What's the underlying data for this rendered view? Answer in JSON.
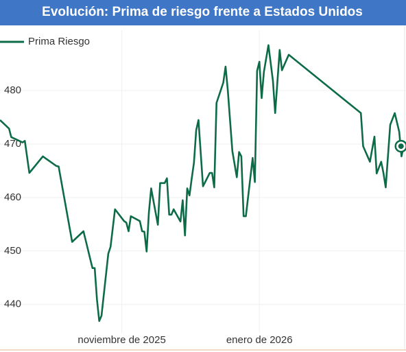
{
  "chart_data": {
    "type": "line",
    "title": "Evolución: Prima de riesgo frente a Estados Unidos",
    "x": [
      0,
      4,
      5,
      10,
      11,
      13,
      19,
      25,
      26,
      32,
      37,
      41,
      42,
      43,
      44,
      45,
      48,
      49,
      51,
      55,
      56,
      57,
      58,
      62,
      63,
      64,
      65,
      66,
      67,
      70,
      71,
      73,
      74,
      75,
      76,
      77,
      80,
      81,
      82,
      83,
      84,
      85,
      86,
      87,
      88,
      90,
      93,
      94,
      95,
      96,
      99,
      100,
      101,
      103,
      105,
      106,
      107,
      108,
      109,
      112,
      113,
      114,
      115,
      116,
      117,
      119,
      121,
      122,
      124,
      125,
      128,
      160,
      161,
      164,
      166,
      167,
      169,
      170,
      171,
      173,
      175,
      177,
      178,
      179
    ],
    "series": [
      {
        "name": "Prima Riesgo",
        "color": "#0d6b47",
        "values": [
          474.5,
          472.9,
          471.3,
          470.3,
          470.6,
          464.6,
          467.7,
          465.9,
          465.8,
          451.7,
          453.7,
          446.8,
          446.8,
          440.9,
          436.9,
          437.9,
          449.5,
          450.8,
          457.8,
          455.6,
          455.3,
          453.7,
          456.5,
          455.6,
          453.7,
          453.6,
          449.9,
          457.2,
          461.7,
          454.9,
          462.7,
          462.7,
          463.6,
          456.8,
          456.8,
          457.8,
          455.5,
          459.5,
          452.9,
          461.7,
          460.4,
          463.6,
          466.5,
          472.6,
          474.5,
          462.1,
          464.6,
          464.6,
          461.9,
          477.7,
          481.5,
          484.5,
          480,
          468.7,
          463.8,
          468.5,
          467.7,
          456.5,
          456.5,
          467.4,
          462.9,
          483.7,
          485.4,
          478.6,
          483.5,
          488.5,
          481.8,
          475.8,
          487.6,
          483.8,
          486.7,
          475.8,
          469.6,
          466.7,
          471.4,
          464.5,
          466.7,
          464.6,
          461.9,
          473.6,
          475.8,
          472.3,
          467.7,
          469.6
        ]
      }
    ],
    "xlim": [
      0,
      180
    ],
    "xticks": [
      {
        "value": 54,
        "label": "noviembre de 2025"
      },
      {
        "value": 115,
        "label": "enero de 2026"
      }
    ],
    "ylim": [
      434.7,
      491.3
    ],
    "yticks": [
      440,
      450,
      460,
      470,
      480
    ],
    "grid": true
  }
}
